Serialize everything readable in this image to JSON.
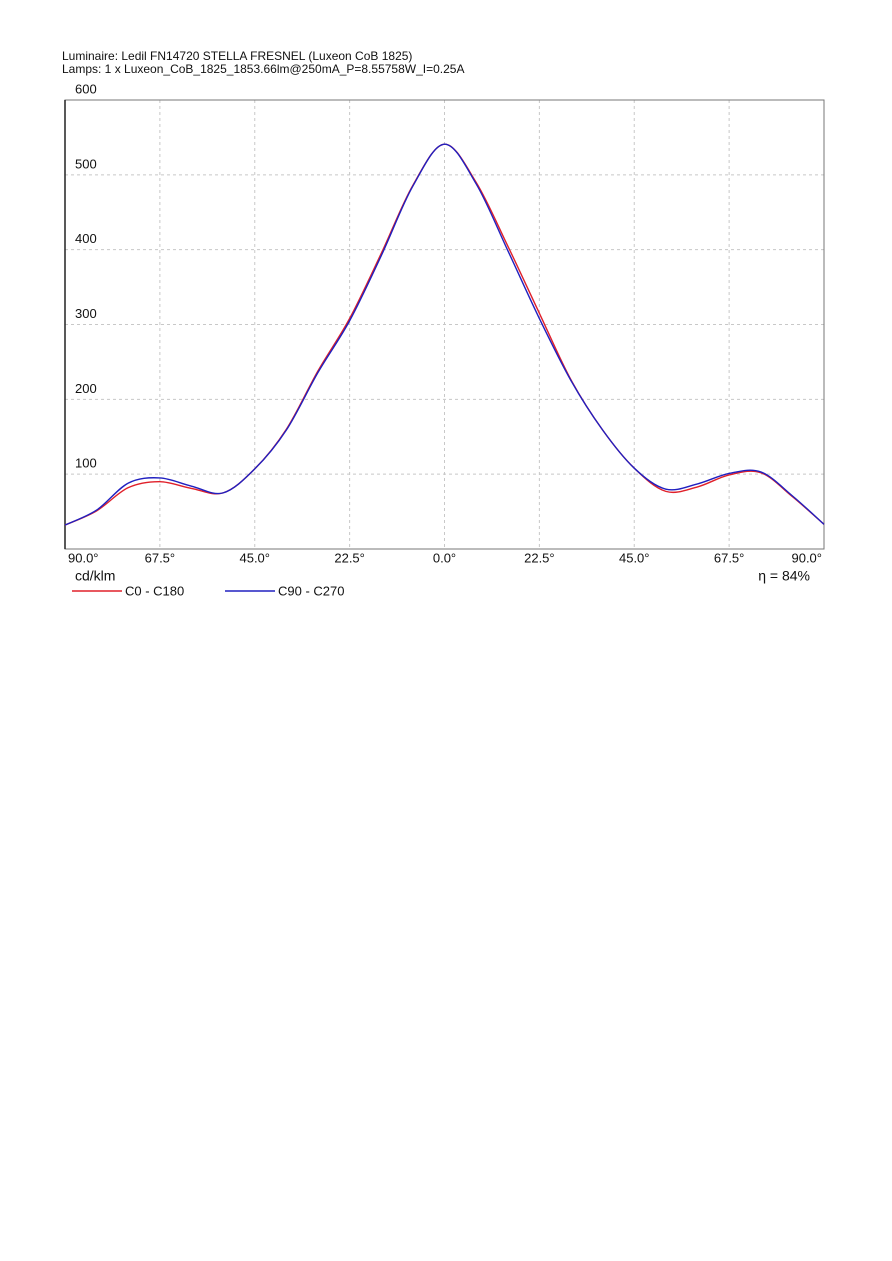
{
  "chart_data": {
    "type": "line",
    "title": "Luminaire: Ledil FN14720  STELLA FRESNEL  (Luxeon  CoB  1825)",
    "subtitle": "Lamps: 1 x Luxeon_CoB_1825_1853.66lm@250mA_P=8.55758W_I=0.25A",
    "ylabel": "cd/klm",
    "annotation": "η = 84%",
    "x": [
      -90,
      -82.5,
      -75,
      -67.5,
      -60,
      -52.5,
      -45,
      -37.5,
      -30,
      -22.5,
      -15,
      -7.5,
      0,
      7.5,
      15,
      22.5,
      30,
      37.5,
      45,
      52.5,
      60,
      67.5,
      75,
      82.5,
      90
    ],
    "series": [
      {
        "name": "C0 - C180",
        "color": "#e0202a",
        "values": [
          32,
          51,
          82,
          90,
          81,
          75,
          107,
          160,
          238,
          308,
          395,
          486,
          541,
          490,
          405,
          315,
          226,
          159,
          108,
          77,
          83,
          99,
          102,
          70,
          33
        ]
      },
      {
        "name": "C90 - C270",
        "color": "#2020c0",
        "values": [
          32,
          52,
          88,
          95,
          84,
          75,
          107,
          159,
          236,
          305,
          392,
          485,
          541,
          488,
          399,
          308,
          225,
          159,
          108,
          80,
          87,
          101,
          103,
          71,
          33
        ]
      }
    ],
    "xlim": [
      -90,
      90
    ],
    "xticks": [
      {
        "value": -90,
        "label": "90.0°"
      },
      {
        "value": -67.5,
        "label": "67.5°"
      },
      {
        "value": -45,
        "label": "45.0°"
      },
      {
        "value": -22.5,
        "label": "22.5°"
      },
      {
        "value": 0,
        "label": "0.0°"
      },
      {
        "value": 22.5,
        "label": "22.5°"
      },
      {
        "value": 45,
        "label": "45.0°"
      },
      {
        "value": 67.5,
        "label": "67.5°"
      },
      {
        "value": 90,
        "label": "90.0°"
      }
    ],
    "ylim": [
      0,
      600
    ],
    "yticks": [
      100,
      200,
      300,
      400,
      500,
      600
    ],
    "grid": true
  }
}
